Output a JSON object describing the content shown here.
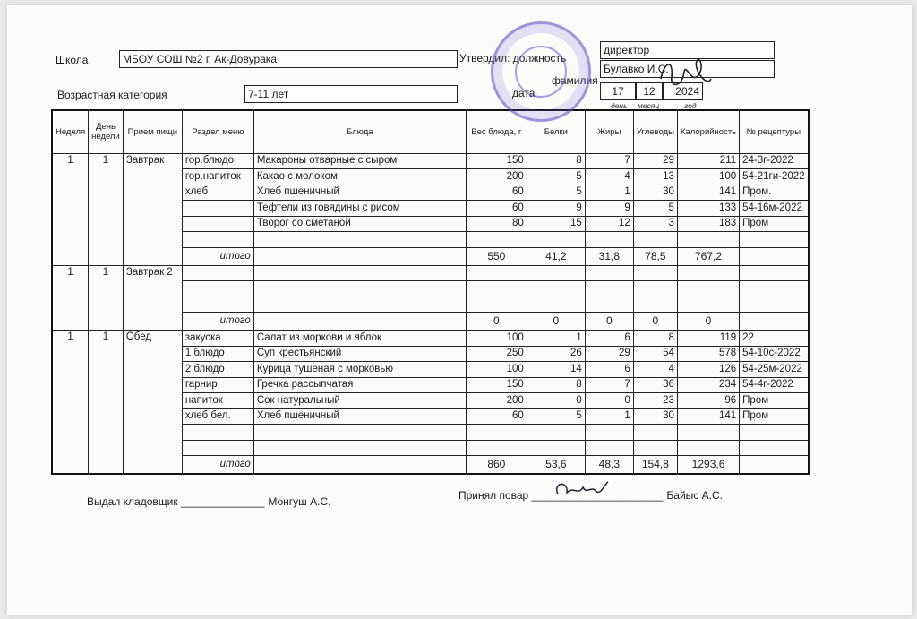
{
  "header": {
    "school_label": "Школа",
    "school_value": "МБОУ СОШ №2 г. Ак-Довурака",
    "age_label": "Возрастная категория",
    "age_value": "7-11 лет",
    "approved_label": "Утвердил: должность",
    "position_value": "директор",
    "surname_label": "фамилия",
    "surname_value": "Булавко И.С.",
    "date_label": "дата",
    "day": "17",
    "month": "12",
    "year": "2024",
    "day_label": "день",
    "month_label": "месяц",
    "year_label": "год"
  },
  "columns": [
    "Неделя",
    "День недели",
    "Прием пищи",
    "Раздел меню",
    "Блюда",
    "Вес блюда, г",
    "Белки",
    "Жиры",
    "Углеводы",
    "Калорийность",
    "№ рецептуры"
  ],
  "sections": [
    {
      "week": "1",
      "day": "1",
      "meal": "Завтрак",
      "rows": [
        [
          "гор.блюдо",
          "Макароны отварные с сыром",
          "150",
          "8",
          "7",
          "29",
          "211",
          "24-3г-2022"
        ],
        [
          "гор.напиток",
          "Какао с молоком",
          "200",
          "5",
          "4",
          "13",
          "100",
          "54-21ги-2022"
        ],
        [
          "хлеб",
          "Хлеб пшеничный",
          "60",
          "5",
          "1",
          "30",
          "141",
          "Пром."
        ],
        [
          "",
          "Тефтели из говядины с рисом",
          "60",
          "9",
          "9",
          "5",
          "133",
          "54-16м-2022"
        ],
        [
          "",
          "Творог со сметаной",
          "80",
          "15",
          "12",
          "3",
          "183",
          "Пром"
        ],
        [
          "",
          "",
          "",
          "",
          "",
          "",
          "",
          ""
        ]
      ],
      "total_label": "итого",
      "total": [
        "550",
        "41,2",
        "31,8",
        "78,5",
        "767,2"
      ]
    },
    {
      "week": "1",
      "day": "1",
      "meal": "Завтрак 2",
      "rows": [
        [
          "",
          "",
          "",
          "",
          "",
          "",
          "",
          ""
        ],
        [
          "",
          "",
          "",
          "",
          "",
          "",
          "",
          ""
        ],
        [
          "",
          "",
          "",
          "",
          "",
          "",
          "",
          ""
        ]
      ],
      "total_label": "итого",
      "total": [
        "0",
        "0",
        "0",
        "0",
        "0"
      ]
    },
    {
      "week": "1",
      "day": "1",
      "meal": "Обед",
      "rows": [
        [
          "закуска",
          "Салат из моркови и яблок",
          "100",
          "1",
          "6",
          "8",
          "119",
          "22"
        ],
        [
          "1 блюдо",
          "Суп крестьянский",
          "250",
          "26",
          "29",
          "54",
          "578",
          "54-10с-2022"
        ],
        [
          "2 блюдо",
          "Курица тушеная с морковью",
          "100",
          "14",
          "6",
          "4",
          "126",
          "54-25м-2022"
        ],
        [
          "гарнир",
          "Гречка рассыпчатая",
          "150",
          "8",
          "7",
          "36",
          "234",
          "54-4г-2022"
        ],
        [
          "напиток",
          "Сок натуральный",
          "200",
          "0",
          "0",
          "23",
          "96",
          "Пром"
        ],
        [
          "хлеб бел.",
          "Хлеб пшеничный",
          "60",
          "5",
          "1",
          "30",
          "141",
          "Пром"
        ],
        [
          "",
          "",
          "",
          "",
          "",
          "",
          "",
          ""
        ],
        [
          "",
          "",
          "",
          "",
          "",
          "",
          "",
          ""
        ]
      ],
      "total_label": "итого",
      "total": [
        "860",
        "53,6",
        "48,3",
        "154,8",
        "1293,6"
      ]
    }
  ],
  "footer": {
    "issued_label": "Выдал кладовщик ______________",
    "issued_name": "Монгуш А.С.",
    "received_label": "Принял повар ______________________",
    "received_name": "Байыс А.С."
  },
  "stamp_text": "МБОУ СОШ №2 г. Ак-Довурака",
  "colors": {
    "stamp": "#5f50c8",
    "ink": "#1a1a1a"
  }
}
